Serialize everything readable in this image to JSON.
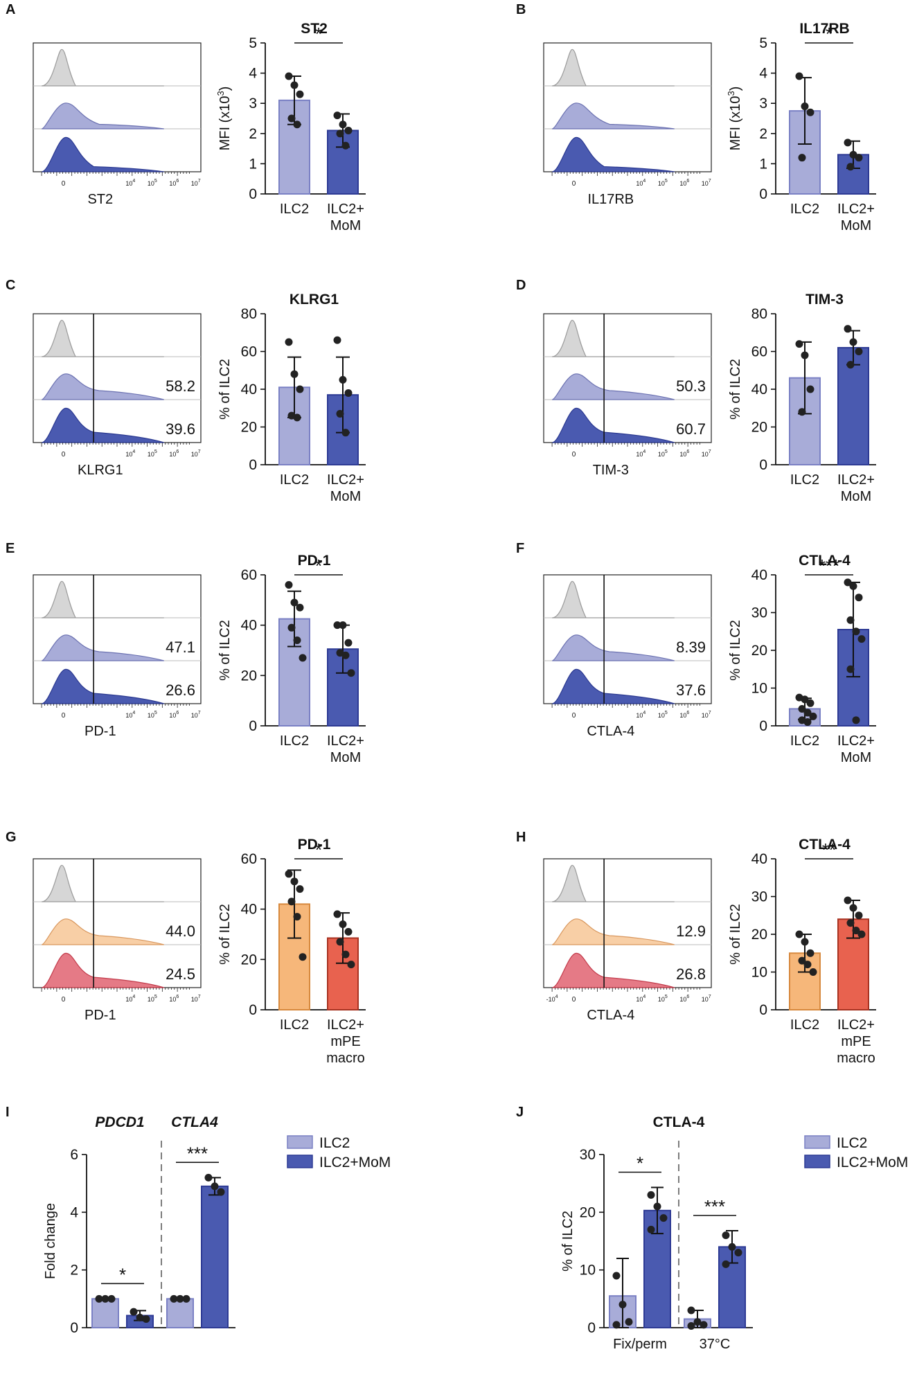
{
  "colors": {
    "ilc2": "#a8acd8",
    "mom": "#4a5ab0",
    "gray": "#d6d6d6",
    "ilc2_orange": "#f6b77a",
    "mpe_red": "#e8624f",
    "hist_orange": "#f8cfa6",
    "hist_red": "#e57a86"
  },
  "tick_label": "10",
  "tick_exps": [
    "4",
    "5",
    "6",
    "7"
  ],
  "tick_zero": "0",
  "tick_neg": "-10",
  "tick_neg_exp": "4",
  "panels": [
    {
      "letter": "A",
      "hist": {
        "marker": "ST2",
        "gate": false,
        "fill": [
          "gray",
          "ilc2",
          "mom"
        ],
        "pcts": []
      },
      "chart_data": {
        "type": "bar",
        "title": "ST2",
        "ylabel": "MFI (x10",
        "ylabel_sup": "3",
        "ylabel_close": ")",
        "ylim": [
          0,
          5
        ],
        "yticks": [
          0,
          1,
          2,
          3,
          4,
          5
        ],
        "categories": [
          [
            "ILC2"
          ],
          [
            "ILC2+",
            "MoM"
          ]
        ],
        "colors": [
          "ilc2",
          "mom"
        ],
        "values": [
          3.1,
          2.1
        ],
        "errors": [
          0.8,
          0.55
        ],
        "points": [
          [
            3.9,
            3.6,
            3.3,
            2.5,
            2.3
          ],
          [
            2.6,
            2.3,
            2.1,
            2.0,
            1.6
          ]
        ],
        "sig": "*"
      }
    },
    {
      "letter": "B",
      "hist": {
        "marker": "IL17RB",
        "gate": false,
        "fill": [
          "gray",
          "ilc2",
          "mom"
        ],
        "pcts": []
      },
      "chart_data": {
        "type": "bar",
        "title": "IL17RB",
        "ylabel": "MFI (x10",
        "ylabel_sup": "3",
        "ylabel_close": ")",
        "ylim": [
          0,
          5
        ],
        "yticks": [
          0,
          1,
          2,
          3,
          4,
          5
        ],
        "categories": [
          [
            "ILC2"
          ],
          [
            "ILC2+",
            "MoM"
          ]
        ],
        "colors": [
          "ilc2",
          "mom"
        ],
        "values": [
          2.75,
          1.3
        ],
        "errors": [
          1.1,
          0.45
        ],
        "points": [
          [
            3.9,
            2.9,
            2.7,
            1.2
          ],
          [
            1.7,
            1.3,
            1.2,
            0.9
          ]
        ],
        "sig": "*"
      }
    },
    {
      "letter": "C",
      "hist": {
        "marker": "KLRG1",
        "gate": true,
        "fill": [
          "gray",
          "ilc2",
          "mom"
        ],
        "pcts": [
          "58.2",
          "39.6"
        ]
      },
      "chart_data": {
        "type": "bar",
        "title": "KLRG1",
        "ylabel": "% of ILC2",
        "ylim": [
          0,
          80
        ],
        "yticks": [
          0,
          20,
          40,
          60,
          80
        ],
        "categories": [
          [
            "ILC2"
          ],
          [
            "ILC2+",
            "MoM"
          ]
        ],
        "colors": [
          "ilc2",
          "mom"
        ],
        "values": [
          41,
          37
        ],
        "errors": [
          16,
          20
        ],
        "points": [
          [
            65,
            48,
            40,
            26,
            25
          ],
          [
            66,
            45,
            38,
            27,
            17
          ]
        ],
        "sig": ""
      }
    },
    {
      "letter": "D",
      "hist": {
        "marker": "TIM-3",
        "gate": true,
        "fill": [
          "gray",
          "ilc2",
          "mom"
        ],
        "pcts": [
          "50.3",
          "60.7"
        ]
      },
      "chart_data": {
        "type": "bar",
        "title": "TIM-3",
        "ylabel": "% of ILC2",
        "ylim": [
          0,
          80
        ],
        "yticks": [
          0,
          20,
          40,
          60,
          80
        ],
        "categories": [
          [
            "ILC2"
          ],
          [
            "ILC2+",
            "MoM"
          ]
        ],
        "colors": [
          "ilc2",
          "mom"
        ],
        "values": [
          46,
          62
        ],
        "errors": [
          19,
          9
        ],
        "points": [
          [
            64,
            58,
            40,
            28
          ],
          [
            72,
            65,
            60,
            53
          ]
        ],
        "sig": ""
      }
    },
    {
      "letter": "E",
      "hist": {
        "marker": "PD-1",
        "gate": true,
        "fill": [
          "gray",
          "ilc2",
          "mom"
        ],
        "pcts": [
          "47.1",
          "26.6"
        ]
      },
      "chart_data": {
        "type": "bar",
        "title": "PD-1",
        "ylabel": "% of ILC2",
        "ylim": [
          0,
          60
        ],
        "yticks": [
          0,
          20,
          40,
          60
        ],
        "categories": [
          [
            "ILC2"
          ],
          [
            "ILC2+",
            "MoM"
          ]
        ],
        "colors": [
          "ilc2",
          "mom"
        ],
        "values": [
          42.5,
          30.5
        ],
        "errors": [
          11,
          9.5
        ],
        "points": [
          [
            56,
            49,
            47,
            39,
            34,
            27
          ],
          [
            40,
            40,
            33,
            29,
            28,
            21
          ]
        ],
        "sig": "*"
      }
    },
    {
      "letter": "F",
      "hist": {
        "marker": "CTLA-4",
        "gate": true,
        "fill": [
          "gray",
          "ilc2",
          "mom"
        ],
        "pcts": [
          "8.39",
          "37.6"
        ]
      },
      "chart_data": {
        "type": "bar",
        "title": "CTLA-4",
        "ylabel": "% of ILC2",
        "ylim": [
          0,
          40
        ],
        "yticks": [
          0,
          10,
          20,
          30,
          40
        ],
        "categories": [
          [
            "ILC2"
          ],
          [
            "ILC2+",
            "MoM"
          ]
        ],
        "colors": [
          "ilc2",
          "mom"
        ],
        "values": [
          4.5,
          25.5
        ],
        "errors": [
          2.8,
          12.5
        ],
        "points": [
          [
            7.5,
            7,
            6,
            4.5,
            3.5,
            2.5,
            1.5,
            1
          ],
          [
            38,
            37,
            34,
            28,
            25,
            23,
            15,
            1.5
          ]
        ],
        "sig": "***"
      }
    },
    {
      "letter": "G",
      "hist": {
        "marker": "PD-1",
        "gate": true,
        "fill": [
          "gray",
          "hist_orange",
          "hist_red"
        ],
        "pcts": [
          "44.0",
          "24.5"
        ]
      },
      "chart_data": {
        "type": "bar",
        "title": "PD-1",
        "ylabel": "% of ILC2",
        "ylim": [
          0,
          60
        ],
        "yticks": [
          0,
          20,
          40,
          60
        ],
        "categories": [
          [
            "ILC2"
          ],
          [
            "ILC2+",
            "mPE",
            "macro"
          ]
        ],
        "colors": [
          "ilc2_orange",
          "mpe_red"
        ],
        "values": [
          42,
          28.5
        ],
        "errors": [
          13.5,
          10
        ],
        "points": [
          [
            54,
            51,
            48,
            43,
            37,
            21
          ],
          [
            38,
            34,
            31,
            27,
            22,
            18
          ]
        ],
        "sig": "*"
      }
    },
    {
      "letter": "H",
      "hist": {
        "marker": "CTLA-4",
        "gate": true,
        "fill": [
          "gray",
          "hist_orange",
          "hist_red"
        ],
        "pcts": [
          "12.9",
          "26.8"
        ],
        "negtick": true
      },
      "chart_data": {
        "type": "bar",
        "title": "CTLA-4",
        "ylabel": "% of ILC2",
        "ylim": [
          0,
          40
        ],
        "yticks": [
          0,
          10,
          20,
          30,
          40
        ],
        "categories": [
          [
            "ILC2"
          ],
          [
            "ILC2+",
            "mPE",
            "macro"
          ]
        ],
        "colors": [
          "ilc2_orange",
          "mpe_red"
        ],
        "values": [
          15,
          24
        ],
        "errors": [
          5,
          5
        ],
        "points": [
          [
            20,
            18,
            15,
            13,
            12,
            10
          ],
          [
            29,
            27,
            25,
            23,
            21,
            20
          ]
        ],
        "sig": "**"
      }
    },
    {
      "letter": "I",
      "chart_data": {
        "type": "grouped_bar",
        "title": "",
        "ylabel": "Fold change",
        "ylim": [
          0,
          6
        ],
        "yticks": [
          0,
          2,
          4,
          6
        ],
        "groups": [
          "PDCD1",
          "CTLA4"
        ],
        "groups_italic": true,
        "series": [
          {
            "name": "ILC2",
            "color": "ilc2",
            "values": [
              1.0,
              1.0
            ],
            "errors": [
              0,
              0
            ],
            "points": [
              [
                1,
                1,
                1
              ],
              [
                1,
                1,
                1
              ]
            ]
          },
          {
            "name": "ILC2+MoM",
            "color": "mom",
            "values": [
              0.42,
              4.9
            ],
            "errors": [
              0.17,
              0.3
            ],
            "points": [
              [
                0.55,
                0.35,
                0.3
              ],
              [
                5.2,
                4.9,
                4.7
              ]
            ]
          }
        ],
        "sig": [
          "*",
          "***"
        ],
        "legend": [
          "ILC2",
          "ILC2+MoM"
        ],
        "xlabels": []
      }
    },
    {
      "letter": "J",
      "chart_data": {
        "type": "grouped_bar",
        "title": "CTLA-4",
        "ylabel": "% of ILC2",
        "ylim": [
          0,
          30
        ],
        "yticks": [
          0,
          10,
          20,
          30
        ],
        "groups": [
          "Fix/perm",
          "37°C"
        ],
        "groups_italic": false,
        "series": [
          {
            "name": "ILC2",
            "color": "ilc2",
            "values": [
              5.5,
              1.5
            ],
            "errors": [
              6.5,
              1.5
            ],
            "points": [
              [
                9,
                4,
                1,
                0.5
              ],
              [
                3,
                1,
                0.5,
                0.3
              ]
            ]
          },
          {
            "name": "ILC2+MoM",
            "color": "mom",
            "values": [
              20.3,
              14
            ],
            "errors": [
              4,
              2.8
            ],
            "points": [
              [
                23,
                21,
                19,
                17
              ],
              [
                16,
                14,
                13,
                11
              ]
            ]
          }
        ],
        "sig": [
          "*",
          "***"
        ],
        "legend": [
          "ILC2",
          "ILC2+MoM"
        ],
        "xlabels": [
          "Fix/perm",
          "37°C"
        ]
      }
    }
  ]
}
